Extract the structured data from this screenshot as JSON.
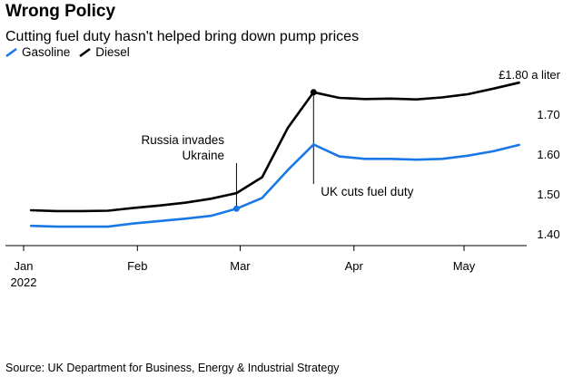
{
  "header": {
    "title": "Wrong Policy",
    "subtitle": "Cutting fuel duty hasn't helped bring down pump prices"
  },
  "legend": [
    {
      "name": "Gasoline",
      "color": "#1a78e6"
    },
    {
      "name": "Diesel",
      "color": "#000000"
    }
  ],
  "source": "Source: UK Department for Business, Energy & Industrial Strategy",
  "chart_data": {
    "type": "line",
    "title": "Wrong Policy",
    "subtitle": "Cutting fuel duty hasn't helped bring down pump prices",
    "y_unit_label": "£1.80 a liter",
    "ylim": [
      1.37,
      1.82
    ],
    "y_ticks": [
      1.4,
      1.5,
      1.6,
      1.7
    ],
    "y_tick_labels": [
      "1.40",
      "1.50",
      "1.60",
      "1.70"
    ],
    "x_ticks": [
      {
        "date": "2022-01-01",
        "label": "Jan",
        "sublabel": "2022"
      },
      {
        "date": "2022-02-01",
        "label": "Feb"
      },
      {
        "date": "2022-03-01",
        "label": "Mar"
      },
      {
        "date": "2022-04-01",
        "label": "Apr"
      },
      {
        "date": "2022-05-01",
        "label": "May"
      }
    ],
    "x": [
      "2022-01-03",
      "2022-01-10",
      "2022-01-17",
      "2022-01-24",
      "2022-01-31",
      "2022-02-07",
      "2022-02-14",
      "2022-02-21",
      "2022-02-28",
      "2022-03-07",
      "2022-03-14",
      "2022-03-21",
      "2022-03-28",
      "2022-04-04",
      "2022-04-11",
      "2022-04-18",
      "2022-04-25",
      "2022-05-02",
      "2022-05-09",
      "2022-05-16"
    ],
    "series": [
      {
        "name": "Gasoline",
        "color": "#1a78e6",
        "values": [
          1.42,
          1.418,
          1.418,
          1.418,
          1.426,
          1.432,
          1.438,
          1.445,
          1.463,
          1.49,
          1.56,
          1.624,
          1.594,
          1.588,
          1.588,
          1.586,
          1.588,
          1.596,
          1.607,
          1.623
        ]
      },
      {
        "name": "Diesel",
        "color": "#000000",
        "values": [
          1.459,
          1.457,
          1.457,
          1.458,
          1.465,
          1.471,
          1.478,
          1.488,
          1.502,
          1.542,
          1.666,
          1.755,
          1.741,
          1.738,
          1.739,
          1.737,
          1.742,
          1.75,
          1.764,
          1.779
        ]
      }
    ],
    "annotations": [
      {
        "text_lines": [
          "Russia invades",
          "Ukraine"
        ],
        "date": "2022-02-28",
        "series": "Gasoline"
      },
      {
        "text_lines": [
          "UK cuts fuel duty"
        ],
        "date": "2022-03-21",
        "series": "Diesel"
      }
    ]
  }
}
